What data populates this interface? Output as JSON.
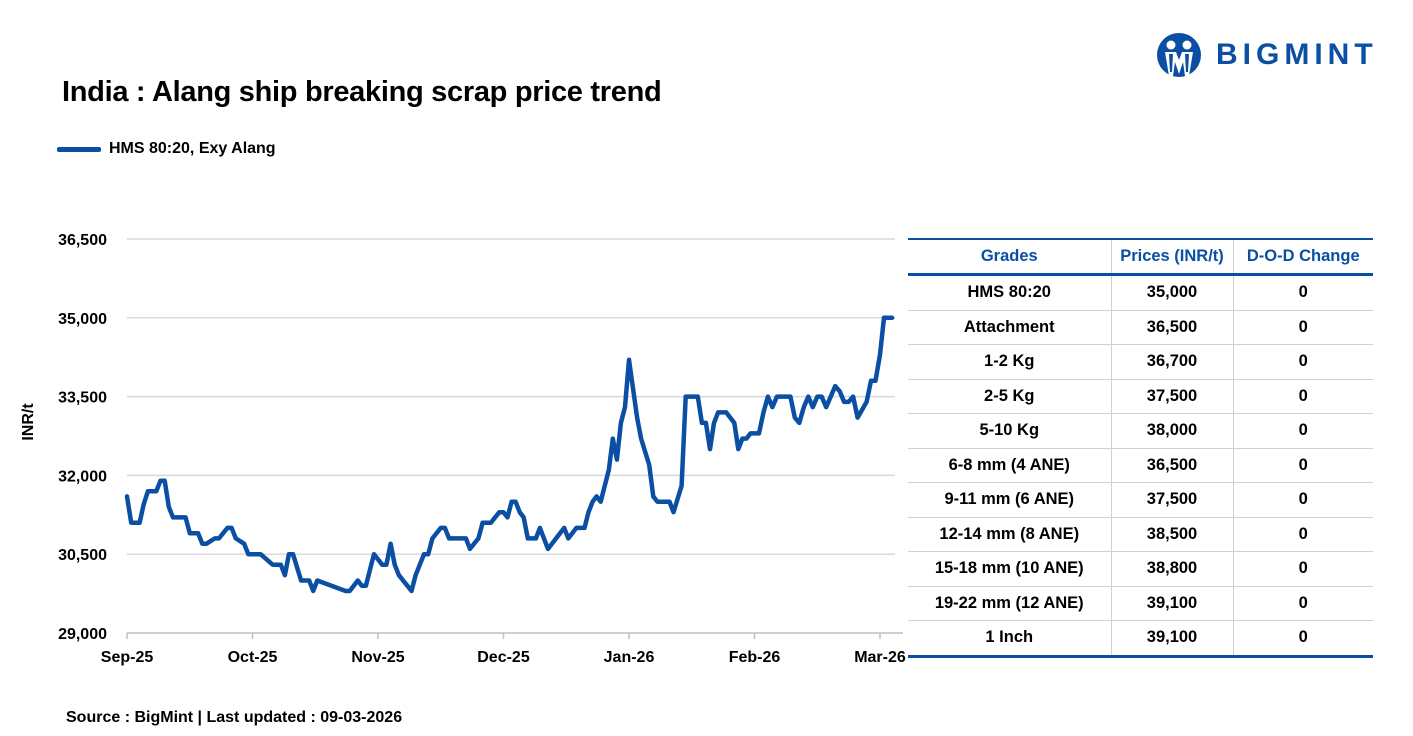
{
  "header": {
    "title": "India : Alang ship breaking scrap price trend",
    "logo_text": "BIGMINT"
  },
  "colors": {
    "brand": "#0a4fa3",
    "grid": "#d9d9d9"
  },
  "footer": {
    "source": "Source : BigMint | Last updated : 09-03-2026"
  },
  "chart_data": {
    "type": "line",
    "title": "India : Alang ship breaking scrap price trend",
    "ylabel": "INR/t",
    "xlabel": "",
    "ylim": [
      29000,
      36500
    ],
    "yticks": [
      "29,000",
      "30,500",
      "32,000",
      "33,500",
      "35,000",
      "36,500"
    ],
    "ytick_values": [
      29000,
      30500,
      32000,
      33500,
      35000,
      36500
    ],
    "xticks": [
      "Sep-25",
      "Oct-25",
      "Nov-25",
      "Dec-25",
      "Jan-26",
      "Feb-26",
      "Mar-26"
    ],
    "grid": true,
    "legend": "top-left",
    "series": [
      {
        "name": "HMS 80:20, Exy Alang",
        "color": "#0a4fa3",
        "points": [
          [
            "2025-09-01",
            31600
          ],
          [
            "2025-09-02",
            31100
          ],
          [
            "2025-09-04",
            31100
          ],
          [
            "2025-09-05",
            31450
          ],
          [
            "2025-09-06",
            31700
          ],
          [
            "2025-09-08",
            31700
          ],
          [
            "2025-09-09",
            31900
          ],
          [
            "2025-09-10",
            31900
          ],
          [
            "2025-09-11",
            31400
          ],
          [
            "2025-09-12",
            31200
          ],
          [
            "2025-09-15",
            31200
          ],
          [
            "2025-09-16",
            30900
          ],
          [
            "2025-09-18",
            30900
          ],
          [
            "2025-09-19",
            30700
          ],
          [
            "2025-09-20",
            30700
          ],
          [
            "2025-09-22",
            30800
          ],
          [
            "2025-09-23",
            30800
          ],
          [
            "2025-09-25",
            31000
          ],
          [
            "2025-09-26",
            31000
          ],
          [
            "2025-09-27",
            30800
          ],
          [
            "2025-09-29",
            30700
          ],
          [
            "2025-09-30",
            30500
          ],
          [
            "2025-10-03",
            30500
          ],
          [
            "2025-10-06",
            30300
          ],
          [
            "2025-10-08",
            30300
          ],
          [
            "2025-10-09",
            30100
          ],
          [
            "2025-10-10",
            30500
          ],
          [
            "2025-10-11",
            30500
          ],
          [
            "2025-10-13",
            30000
          ],
          [
            "2025-10-15",
            30000
          ],
          [
            "2025-10-16",
            29800
          ],
          [
            "2025-10-17",
            30000
          ],
          [
            "2025-10-24",
            29800
          ],
          [
            "2025-10-25",
            29800
          ],
          [
            "2025-10-27",
            30000
          ],
          [
            "2025-10-28",
            29900
          ],
          [
            "2025-10-29",
            29900
          ],
          [
            "2025-10-30",
            30200
          ],
          [
            "2025-10-31",
            30500
          ],
          [
            "2025-11-02",
            30300
          ],
          [
            "2025-11-03",
            30300
          ],
          [
            "2025-11-04",
            30700
          ],
          [
            "2025-11-05",
            30300
          ],
          [
            "2025-11-06",
            30100
          ],
          [
            "2025-11-08",
            29900
          ],
          [
            "2025-11-09",
            29800
          ],
          [
            "2025-11-10",
            30100
          ],
          [
            "2025-11-12",
            30500
          ],
          [
            "2025-11-13",
            30500
          ],
          [
            "2025-11-14",
            30800
          ],
          [
            "2025-11-16",
            31000
          ],
          [
            "2025-11-17",
            31000
          ],
          [
            "2025-11-18",
            30800
          ],
          [
            "2025-11-22",
            30800
          ],
          [
            "2025-11-23",
            30600
          ],
          [
            "2025-11-25",
            30800
          ],
          [
            "2025-11-26",
            31100
          ],
          [
            "2025-11-28",
            31100
          ],
          [
            "2025-11-30",
            31300
          ],
          [
            "2025-12-01",
            31300
          ],
          [
            "2025-12-02",
            31200
          ],
          [
            "2025-12-03",
            31500
          ],
          [
            "2025-12-04",
            31500
          ],
          [
            "2025-12-05",
            31300
          ],
          [
            "2025-12-06",
            31200
          ],
          [
            "2025-12-07",
            30800
          ],
          [
            "2025-12-09",
            30800
          ],
          [
            "2025-12-10",
            31000
          ],
          [
            "2025-12-12",
            30600
          ],
          [
            "2025-12-16",
            31000
          ],
          [
            "2025-12-17",
            30800
          ],
          [
            "2025-12-19",
            31000
          ],
          [
            "2025-12-21",
            31000
          ],
          [
            "2025-12-22",
            31300
          ],
          [
            "2025-12-23",
            31500
          ],
          [
            "2025-12-24",
            31600
          ],
          [
            "2025-12-25",
            31500
          ],
          [
            "2025-12-26",
            31800
          ],
          [
            "2025-12-27",
            32100
          ],
          [
            "2025-12-28",
            32700
          ],
          [
            "2025-12-29",
            32300
          ],
          [
            "2025-12-30",
            33000
          ],
          [
            "2025-12-31",
            33300
          ],
          [
            "2026-01-01",
            34200
          ],
          [
            "2026-01-03",
            33100
          ],
          [
            "2026-01-04",
            32700
          ],
          [
            "2026-01-06",
            32200
          ],
          [
            "2026-01-07",
            31600
          ],
          [
            "2026-01-08",
            31500
          ],
          [
            "2026-01-11",
            31500
          ],
          [
            "2026-01-12",
            31300
          ],
          [
            "2026-01-14",
            31800
          ],
          [
            "2026-01-15",
            33500
          ],
          [
            "2026-01-18",
            33500
          ],
          [
            "2026-01-19",
            33000
          ],
          [
            "2026-01-20",
            33000
          ],
          [
            "2026-01-21",
            32500
          ],
          [
            "2026-01-22",
            33000
          ],
          [
            "2026-01-23",
            33200
          ],
          [
            "2026-01-25",
            33200
          ],
          [
            "2026-01-27",
            33000
          ],
          [
            "2026-01-28",
            32500
          ],
          [
            "2026-01-29",
            32700
          ],
          [
            "2026-01-30",
            32700
          ],
          [
            "2026-01-31",
            32800
          ],
          [
            "2026-02-02",
            32800
          ],
          [
            "2026-02-03",
            33200
          ],
          [
            "2026-02-04",
            33500
          ],
          [
            "2026-02-05",
            33300
          ],
          [
            "2026-02-06",
            33500
          ],
          [
            "2026-02-09",
            33500
          ],
          [
            "2026-02-10",
            33100
          ],
          [
            "2026-02-11",
            33000
          ],
          [
            "2026-02-12",
            33300
          ],
          [
            "2026-02-13",
            33500
          ],
          [
            "2026-02-14",
            33300
          ],
          [
            "2026-02-15",
            33500
          ],
          [
            "2026-02-16",
            33500
          ],
          [
            "2026-02-17",
            33300
          ],
          [
            "2026-02-18",
            33500
          ],
          [
            "2026-02-19",
            33700
          ],
          [
            "2026-02-20",
            33600
          ],
          [
            "2026-02-21",
            33400
          ],
          [
            "2026-02-22",
            33400
          ],
          [
            "2026-02-23",
            33500
          ],
          [
            "2026-02-24",
            33100
          ],
          [
            "2026-02-26",
            33400
          ],
          [
            "2026-02-27",
            33800
          ],
          [
            "2026-02-28",
            33800
          ],
          [
            "2026-03-01",
            34300
          ],
          [
            "2026-03-02",
            35000
          ],
          [
            "2026-03-04",
            35000
          ]
        ]
      }
    ]
  },
  "table": {
    "headers": [
      "Grades",
      "Prices (INR/t)",
      "D-O-D Change"
    ],
    "rows": [
      [
        "HMS 80:20",
        "35,000",
        "0"
      ],
      [
        "Attachment",
        "36,500",
        "0"
      ],
      [
        "1-2 Kg",
        "36,700",
        "0"
      ],
      [
        "2-5 Kg",
        "37,500",
        "0"
      ],
      [
        "5-10 Kg",
        "38,000",
        "0"
      ],
      [
        "6-8 mm (4 ANE)",
        "36,500",
        "0"
      ],
      [
        "9-11 mm (6 ANE)",
        "37,500",
        "0"
      ],
      [
        "12-14 mm (8 ANE)",
        "38,500",
        "0"
      ],
      [
        "15-18 mm (10 ANE)",
        "38,800",
        "0"
      ],
      [
        "19-22 mm (12 ANE)",
        "39,100",
        "0"
      ],
      [
        "1 Inch",
        "39,100",
        "0"
      ]
    ]
  }
}
